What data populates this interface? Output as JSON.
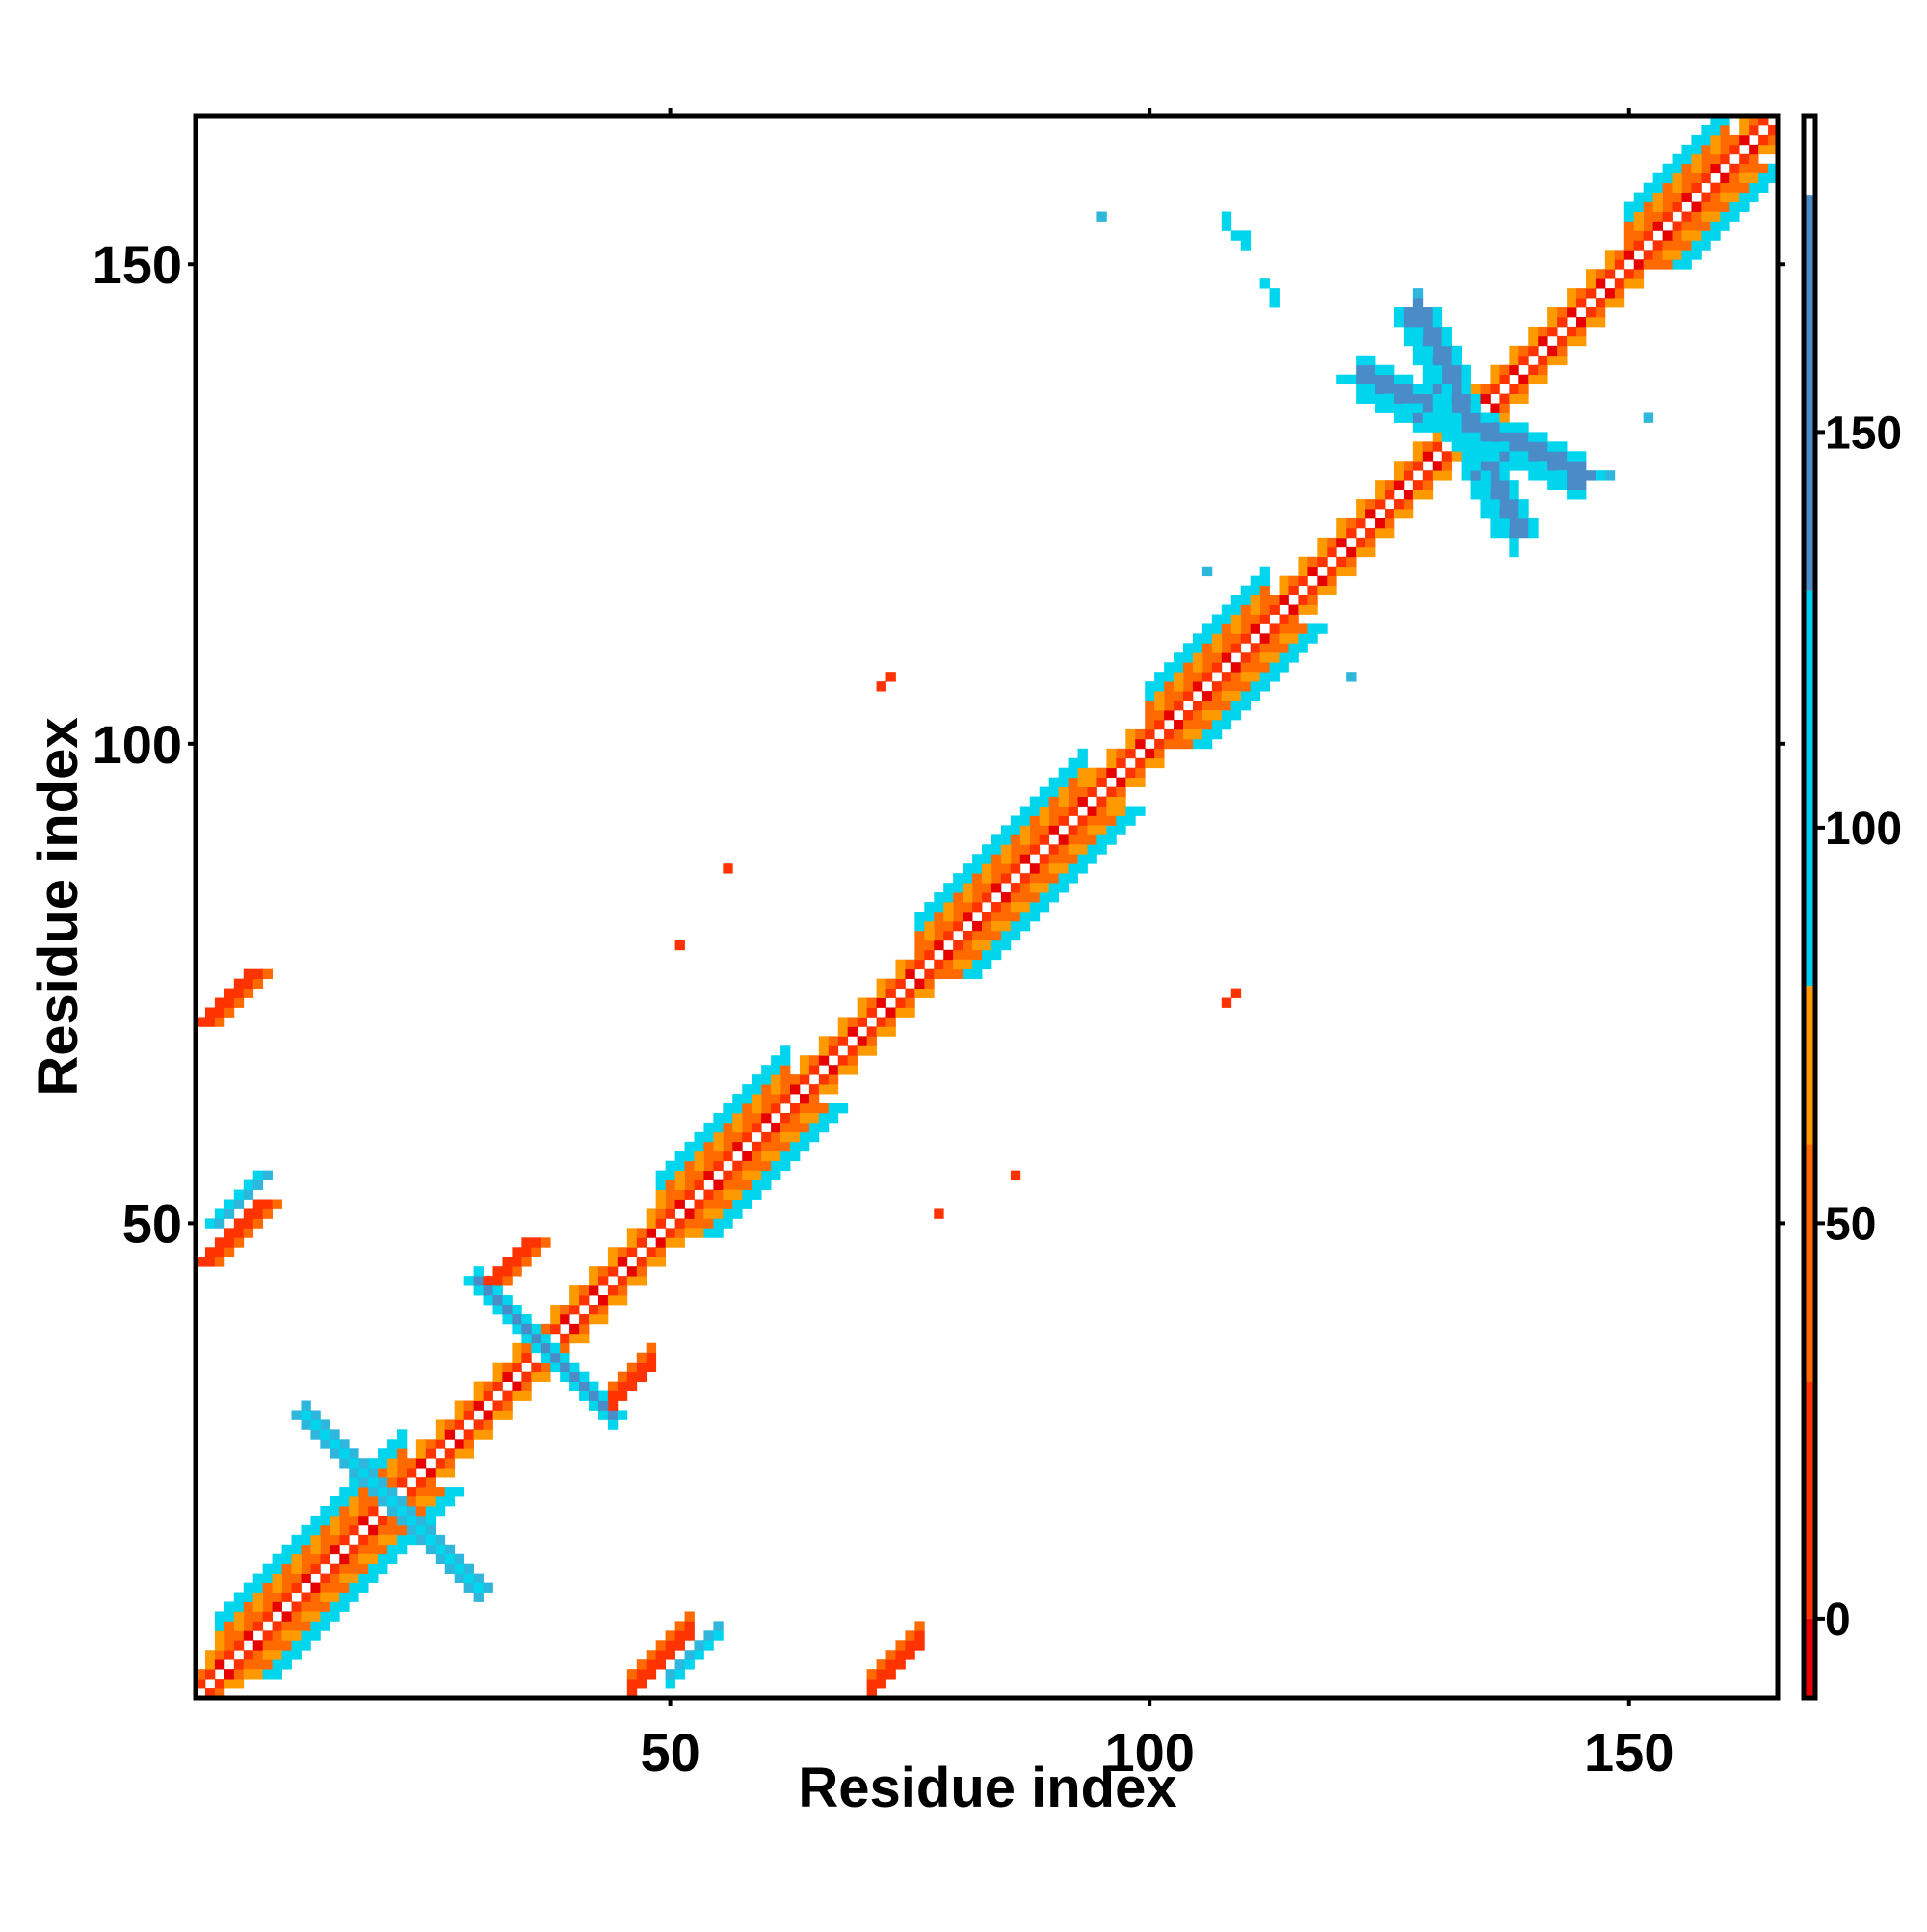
{
  "chart_data": {
    "type": "heatmap",
    "title": "",
    "xlabel": "Residue index",
    "ylabel": "Residue index",
    "xlim": [
      0.5,
      165.5
    ],
    "ylim": [
      0.5,
      165.5
    ],
    "xticks": [
      50,
      100,
      150
    ],
    "yticks": [
      50,
      100,
      150
    ],
    "x_tick_labels": [
      "50",
      "100",
      "150"
    ],
    "y_tick_labels": [
      "50",
      "100",
      "150"
    ],
    "grid": false,
    "colorbar": {
      "placement": "right",
      "range": [
        -10,
        190
      ],
      "ticks": [
        0,
        50,
        100,
        150
      ],
      "tick_labels": [
        "0",
        "50",
        "100",
        "150"
      ],
      "bands": [
        {
          "from": -10,
          "to": 0,
          "color": "#e60000"
        },
        {
          "from": 0,
          "to": 30,
          "color": "#ff3300"
        },
        {
          "from": 30,
          "to": 60,
          "color": "#ff6a00"
        },
        {
          "from": 60,
          "to": 80,
          "color": "#ff9900"
        },
        {
          "from": 80,
          "to": 130,
          "color": "#00ccee"
        },
        {
          "from": 130,
          "to": 180,
          "color": "#4a8cc8"
        },
        {
          "from": 180,
          "to": 190,
          "color": "#ffffff"
        }
      ]
    },
    "colors": {
      "diag_inner": "#e60000",
      "diag_near": "#ff3300",
      "orange_dark": "#ff6a00",
      "orange": "#ff9900",
      "cyan": "#00d5ee",
      "light_blue": "#2eb6dc",
      "steel_blue": "#4a8cc8"
    },
    "regions": [
      {
        "feature": "main diagonal",
        "from": [
          1,
          1
        ],
        "to": [
          165,
          165
        ],
        "value": "0-60"
      },
      {
        "feature": "helix band",
        "from": [
          3,
          3
        ],
        "to": [
          22,
          22
        ],
        "value": "30-100"
      },
      {
        "feature": "helix band",
        "from": [
          49,
          49
        ],
        "to": [
          62,
          62
        ],
        "value": "30-100"
      },
      {
        "feature": "helix band",
        "from": [
          76,
          76
        ],
        "to": [
          93,
          93
        ],
        "value": "30-100"
      },
      {
        "feature": "antiparallel contact",
        "from": [
          29,
          44
        ],
        "to": [
          41,
          34
        ],
        "value": "130-180"
      },
      {
        "feature": "antiparallel contact",
        "from": [
          122,
          139
        ],
        "to": [
          145,
          128
        ],
        "value": "130-180"
      },
      {
        "feature": "off-diagonal contact",
        "from": [
          2,
          45
        ],
        "to": [
          8,
          53
        ],
        "value": "0-30"
      },
      {
        "feature": "off-diagonal contact",
        "from": [
          2,
          72
        ],
        "to": [
          7,
          76
        ],
        "value": "0-30"
      },
      {
        "feature": "off-diagonal contact",
        "from": [
          46,
          1
        ],
        "to": [
          53,
          5
        ],
        "value": "0-30"
      },
      {
        "feature": "off-diagonal contact",
        "from": [
          70,
          1
        ],
        "to": [
          77,
          5
        ],
        "value": "0-30"
      },
      {
        "feature": "off-diagonal contact",
        "from": [
          44,
          30
        ],
        "to": [
          49,
          35
        ],
        "value": "0-30"
      },
      {
        "feature": "off-diagonal contact",
        "from": [
          31,
          44
        ],
        "to": [
          35,
          49
        ],
        "value": "0-30"
      }
    ]
  }
}
